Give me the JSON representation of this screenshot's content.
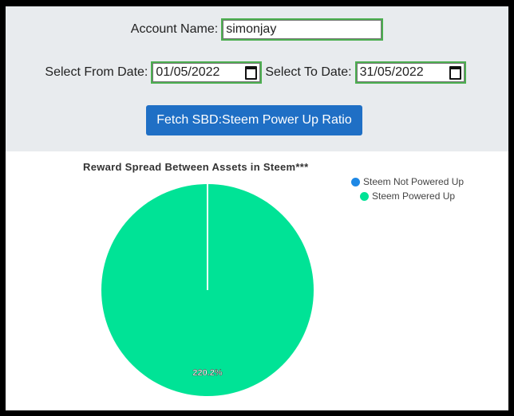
{
  "form": {
    "account_label": "Account Name:",
    "account_value": "simonjay",
    "from_label": "Select From Date:",
    "from_value": "01/05/2022",
    "to_label": "Select To Date:",
    "to_value": "31/05/2022",
    "fetch_button": "Fetch SBD:Steem Power Up Ratio"
  },
  "chart_data": {
    "type": "pie",
    "title": "Reward Spread Between Assets in Steem***",
    "legend_placement": "top-right",
    "series": [
      {
        "name": "Steem Not Powered Up",
        "value": 0,
        "color": "#1e88e5"
      },
      {
        "name": "Steem Powered Up",
        "value": 220.2,
        "label": "220.2%",
        "color": "#00e396"
      }
    ]
  }
}
